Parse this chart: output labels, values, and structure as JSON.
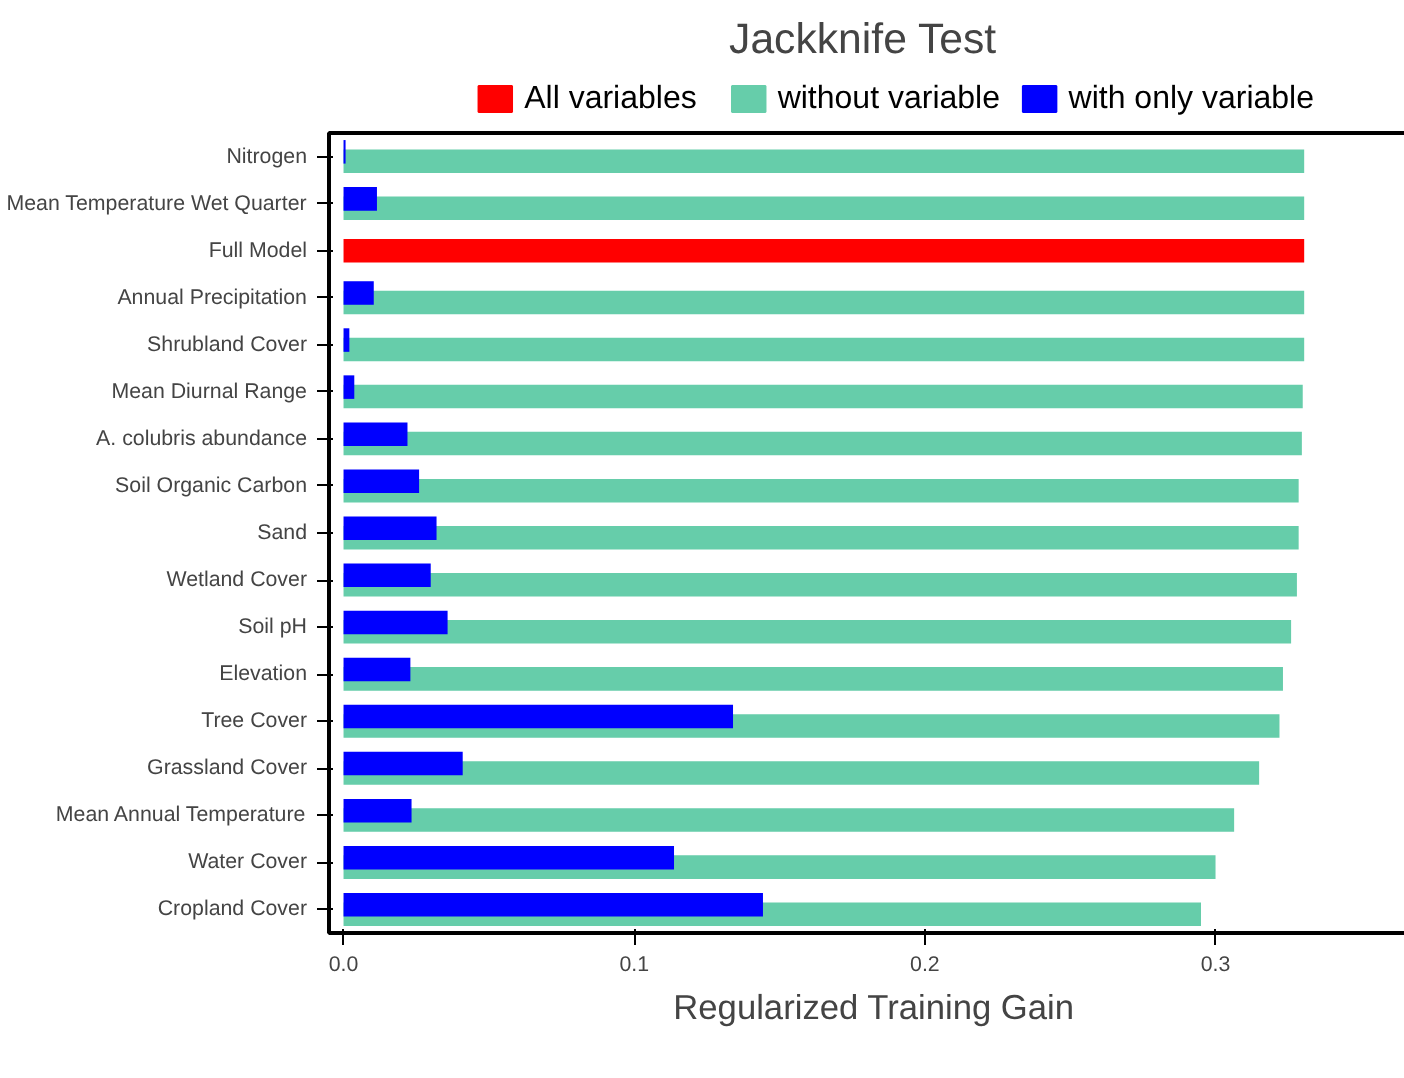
{
  "chart_data": {
    "type": "bar",
    "orientation": "horizontal",
    "title": "Jackknife Test",
    "xlabel": "Regularized Training Gain",
    "categories": [
      "Nitrogen",
      "Mean Temperature Wet Quarter",
      "Full Model",
      "Annual Precipitation",
      "Shrubland Cover",
      "Mean Diurnal Range",
      "A. colubris abundance",
      "Soil Organic Carbon",
      "Sand",
      "Wetland Cover",
      "Soil pH",
      "Elevation",
      "Tree Cover",
      "Grassland Cover",
      "Mean Annual Temperature",
      "Water Cover",
      "Cropland Cover"
    ],
    "series": [
      {
        "name": "All variables",
        "color": "#ff0000",
        "values": [
          null,
          null,
          0.3305,
          null,
          null,
          null,
          null,
          null,
          null,
          null,
          null,
          null,
          null,
          null,
          null,
          null,
          null
        ]
      },
      {
        "name": "without variable",
        "color": "#66cdaa",
        "values": [
          0.3305,
          0.3305,
          null,
          0.3305,
          0.3305,
          0.33,
          0.3297,
          0.3286,
          0.3286,
          0.328,
          0.326,
          0.3232,
          0.322,
          0.315,
          0.3064,
          0.3,
          0.295
        ]
      },
      {
        "name": "with only variable",
        "color": "#0000ff",
        "values": [
          0.0007,
          0.0115,
          null,
          0.0104,
          0.002,
          0.0037,
          0.022,
          0.026,
          0.032,
          0.03,
          0.0358,
          0.023,
          0.134,
          0.041,
          0.0234,
          0.1137,
          0.1443
        ]
      }
    ],
    "xlim": [
      -0.005,
      0.37
    ],
    "xticks": [
      {
        "value": 0,
        "label": "0.0"
      },
      0.1,
      0.2,
      0.3
    ],
    "grid": false,
    "legend": "top"
  }
}
